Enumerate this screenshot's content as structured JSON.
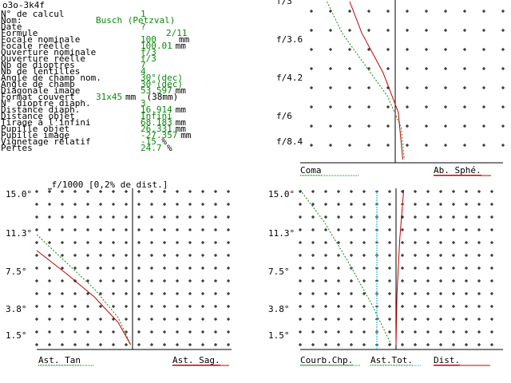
{
  "title": "o3o-3k4f",
  "params": [
    {
      "label": "N° de calcul",
      "value": "1",
      "unit": ""
    },
    {
      "label": "Nom:",
      "value": "Busch (Petzval)",
      "unit": ""
    },
    {
      "label": "Date",
      "value": "?",
      "unit": ""
    },
    {
      "label": "Formule",
      "value": "2/11",
      "unit": ""
    },
    {
      "label": "Focale nominale",
      "value": "100",
      "unit": "mm"
    },
    {
      "label": "Focale réelle",
      "value": "100.01",
      "unit": "mm"
    },
    {
      "label": "Ouverture nominale",
      "value": "f/3",
      "unit": ""
    },
    {
      "label": "Ouverture réelle",
      "value": "f/3",
      "unit": ""
    },
    {
      "label": "Nb de dioptres",
      "value": "7",
      "unit": ""
    },
    {
      "label": "Nb de lentilles",
      "value": "4",
      "unit": ""
    },
    {
      "label": "Angle de champ nom.",
      "value": "30°(dec)",
      "unit": ""
    },
    {
      "label": "Angle de champ",
      "value": "30°(dec)",
      "unit": ""
    },
    {
      "label": "Diagonale image",
      "value": "53.597",
      "unit": "mm"
    },
    {
      "label": "Format couvert",
      "value": "31x45",
      "unit": "mm  (38mm)"
    },
    {
      "label": "N° dioptre diaph.",
      "value": "3",
      "unit": ""
    },
    {
      "label": "Distance diaph.",
      "value": "16.914",
      "unit": "mm"
    },
    {
      "label": "Distance objet",
      "value": "Infini",
      "unit": ""
    },
    {
      "label": "Tirage à l'infini",
      "value": "68.183",
      "unit": "mm"
    },
    {
      "label": "Pupille objet",
      "value": "26.331",
      "unit": "mm"
    },
    {
      "label": "Pupille image",
      "value": "-27.357",
      "unit": "mm"
    },
    {
      "label": "Vignetage relatif",
      "value": "-15",
      "unit": " %"
    },
    {
      "label": "Pertes",
      "value": "24.7",
      "unit": " %"
    }
  ],
  "scale_note": "f/1000 [0,2% de dist.]",
  "colors": {
    "green": "#0a8a0a",
    "red": "#c00000",
    "cyan": "#00b0d8",
    "grid": "#000000"
  },
  "chart_data": [
    {
      "type": "line",
      "name": "spherical",
      "ytick_labels": [
        "f/3",
        "f/3.6",
        "f/4.2",
        "f/6",
        "f/8.4"
      ],
      "legend_left": "Coma",
      "legend_right": "Ab. Sphé.",
      "series": [
        {
          "name": "Coma",
          "style": "dashed-green",
          "points": [
            [
              -0.45,
              0
            ],
            [
              -0.35,
              0.2
            ],
            [
              -0.2,
              0.4
            ],
            [
              -0.05,
              0.6
            ],
            [
              0.04,
              0.8
            ],
            [
              0.06,
              1
            ]
          ]
        },
        {
          "name": "Ab. Sphé.",
          "style": "red",
          "points": [
            [
              -0.3,
              0
            ],
            [
              -0.22,
              0.2
            ],
            [
              -0.08,
              0.45
            ],
            [
              0.02,
              0.7
            ],
            [
              0.05,
              1
            ]
          ]
        }
      ]
    },
    {
      "type": "line",
      "name": "astig-left",
      "ytick_labels": [
        "15.0°",
        "11.3°",
        "7.5°",
        "3.8°",
        "1.5°"
      ],
      "legend_left": "Ast. Tan",
      "legend_right": "Ast. Sag.",
      "series": [
        {
          "name": "Ast. Tan",
          "style": "dashed-green",
          "points": [
            [
              -1,
              0.72
            ],
            [
              -0.7,
              0.55
            ],
            [
              -0.4,
              0.38
            ],
            [
              -0.15,
              0.2
            ],
            [
              -0.02,
              0.03
            ]
          ]
        },
        {
          "name": "Ast. Sag.",
          "style": "red",
          "points": [
            [
              -1,
              0.62
            ],
            [
              -0.7,
              0.48
            ],
            [
              -0.4,
              0.33
            ],
            [
              -0.15,
              0.17
            ],
            [
              -0.02,
              0.03
            ]
          ]
        }
      ]
    },
    {
      "type": "line",
      "name": "astig-right",
      "ytick_labels": [
        "15.0°",
        "11.3°",
        "7.5°",
        "3.8°",
        "1.5°"
      ],
      "legend_left": "Courb.Chp.",
      "legend_mid": "Ast.Tot.",
      "legend_right": "Dist.",
      "series": [
        {
          "name": "Courb.Chp.",
          "style": "dashed-green",
          "points": [
            [
              -1,
              1
            ],
            [
              -0.75,
              0.8
            ],
            [
              -0.5,
              0.55
            ],
            [
              -0.25,
              0.28
            ],
            [
              -0.05,
              0.03
            ]
          ]
        },
        {
          "name": "Ast.Tot.",
          "style": "cyan",
          "points": [
            [
              -0.2,
              1
            ],
            [
              -0.2,
              0
            ]
          ]
        },
        {
          "name": "Dist.",
          "style": "red",
          "points": [
            [
              0.08,
              1
            ],
            [
              0.04,
              0.7
            ],
            [
              0.01,
              0.35
            ],
            [
              0,
              0.03
            ]
          ]
        }
      ]
    }
  ]
}
